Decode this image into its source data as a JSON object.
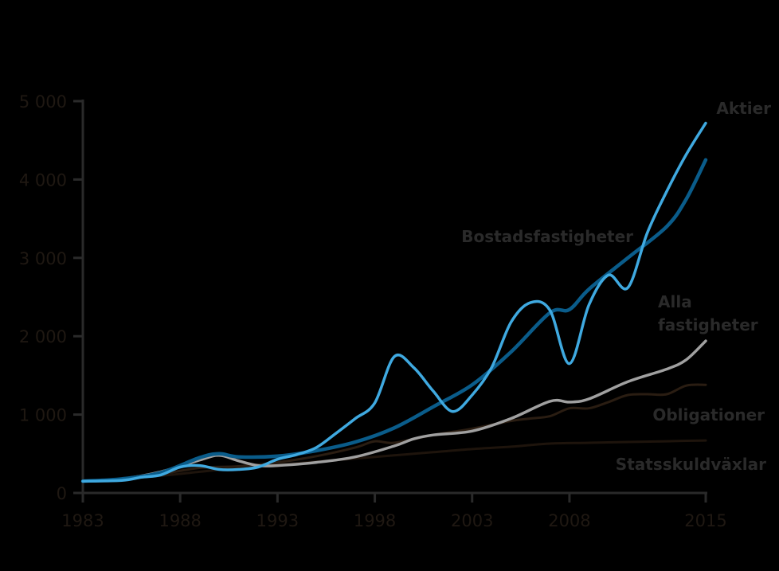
{
  "chart_data": {
    "type": "line",
    "xlim": [
      1983,
      2015
    ],
    "ylim": [
      0,
      5000
    ],
    "x_ticks": [
      "1983",
      "1988",
      "1993",
      "1998",
      "2003",
      "2008",
      "2015"
    ],
    "x_tick_values": [
      1983,
      1988,
      1993,
      1998,
      2003,
      2008,
      2015
    ],
    "y_ticks": [
      "0",
      "1 000",
      "2 000",
      "3 000",
      "4 000",
      "5 000"
    ],
    "y_tick_values": [
      0,
      1000,
      2000,
      3000,
      4000,
      5000
    ],
    "axis_color": "#2a2a2a",
    "series": [
      {
        "name": "Statsskuldväxlar",
        "color": "#1e140c",
        "width": 3,
        "x": [
          1983,
          1985,
          1987,
          1989,
          1991,
          1993,
          1995,
          1997,
          1999,
          2001,
          2003,
          2005,
          2007,
          2009,
          2011,
          2013,
          2015
        ],
        "values": [
          150,
          180,
          220,
          270,
          320,
          360,
          400,
          440,
          480,
          520,
          560,
          590,
          630,
          640,
          650,
          660,
          670
        ]
      },
      {
        "name": "Obligationer",
        "color": "#2a1d12",
        "width": 3,
        "x": [
          1983,
          1985,
          1987,
          1989,
          1991,
          1993,
          1995,
          1997,
          1998,
          1999,
          2001,
          2003,
          2005,
          2006,
          2007,
          2008,
          2009,
          2010,
          2011,
          2012,
          2013,
          2014,
          2015
        ],
        "values": [
          150,
          180,
          240,
          320,
          340,
          390,
          470,
          580,
          660,
          640,
          740,
          820,
          920,
          950,
          980,
          1080,
          1080,
          1160,
          1250,
          1260,
          1260,
          1370,
          1380
        ]
      },
      {
        "name": "Alla fastigheter",
        "color": "#a0a0a0",
        "width": 3.5,
        "x": [
          1983,
          1985,
          1987,
          1989,
          1990,
          1991,
          1992,
          1993,
          1995,
          1997,
          1999,
          2000,
          2001,
          2003,
          2005,
          2007,
          2008,
          2009,
          2011,
          2013,
          2014,
          2015
        ],
        "values": [
          150,
          180,
          270,
          420,
          480,
          410,
          350,
          350,
          390,
          460,
          600,
          690,
          740,
          790,
          950,
          1170,
          1160,
          1200,
          1420,
          1580,
          1700,
          1940
        ]
      },
      {
        "name": "Bostadsfastigheter",
        "color": "#0a5c8a",
        "width": 4.5,
        "x": [
          1983,
          1985,
          1987,
          1989,
          1990,
          1991,
          1993,
          1995,
          1997,
          1999,
          2001,
          2003,
          2005,
          2007,
          2008,
          2009,
          2011,
          2013,
          2014,
          2015
        ],
        "values": [
          150,
          180,
          260,
          450,
          500,
          460,
          470,
          540,
          650,
          830,
          1100,
          1380,
          1800,
          2300,
          2340,
          2600,
          3000,
          3400,
          3750,
          4250
        ]
      },
      {
        "name": "Aktier",
        "color": "#3fa9e0",
        "width": 3.5,
        "x": [
          1983,
          1985,
          1986,
          1987,
          1988,
          1989,
          1990,
          1991,
          1992,
          1993,
          1994,
          1995,
          1996,
          1997,
          1998,
          1999,
          2000,
          2001,
          2002,
          2003,
          2004,
          2005,
          2006,
          2007,
          2008,
          2009,
          2010,
          2011,
          2012,
          2013,
          2014,
          2015
        ],
        "values": [
          150,
          160,
          200,
          230,
          330,
          350,
          300,
          300,
          330,
          430,
          490,
          580,
          760,
          950,
          1150,
          1740,
          1600,
          1300,
          1040,
          1250,
          1600,
          2180,
          2430,
          2330,
          1650,
          2400,
          2780,
          2620,
          3320,
          3850,
          4320,
          4720
        ]
      }
    ],
    "labels": [
      {
        "series": "Aktier",
        "lines": [
          "Aktier"
        ]
      },
      {
        "series": "Bostadsfastigheter",
        "lines": [
          "Bostadsfastigheter"
        ]
      },
      {
        "series": "Alla fastigheter",
        "lines": [
          "Alla",
          "fastigheter"
        ]
      },
      {
        "series": "Obligationer",
        "lines": [
          "Obligationer"
        ]
      },
      {
        "series": "Statsskuldväxlar",
        "lines": [
          "Statsskuldväxlar"
        ]
      }
    ]
  }
}
